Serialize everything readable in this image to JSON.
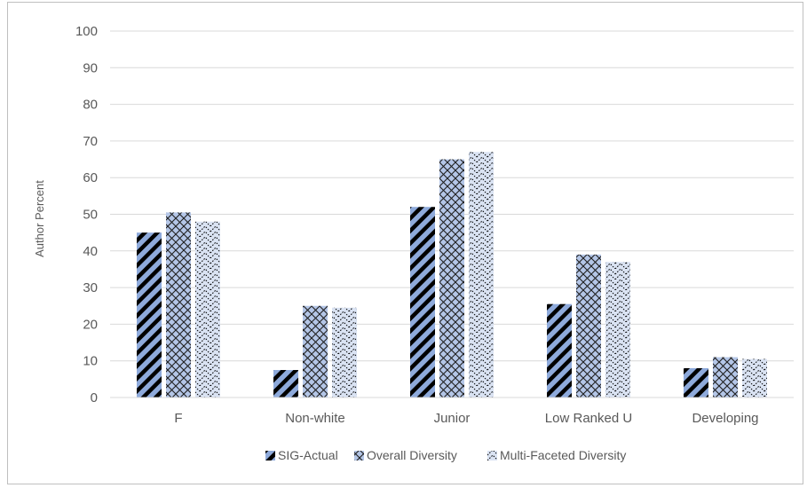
{
  "chart_data": {
    "type": "bar",
    "title": "",
    "xlabel": "",
    "ylabel": "Author Percent",
    "ylim": [
      0,
      100
    ],
    "yticks": [
      0,
      10,
      20,
      30,
      40,
      50,
      60,
      70,
      80,
      90,
      100
    ],
    "categories": [
      "F",
      "Non-white",
      "Junior",
      "Low Ranked U",
      "Developing"
    ],
    "series": [
      {
        "name": "SIG-Actual",
        "values": [
          45,
          7.5,
          52,
          25.5,
          8
        ],
        "pattern": "diagonal-stripes",
        "color": "#8eaadb"
      },
      {
        "name": "Overall Diversity",
        "values": [
          50.5,
          25,
          65,
          39,
          11
        ],
        "pattern": "crosshatch",
        "color": "#b4c6e7"
      },
      {
        "name": "Multi-Faceted Diversity",
        "values": [
          48,
          24.5,
          67,
          37,
          10.5
        ],
        "pattern": "zigzag-dashes",
        "color": "#dae3f3"
      }
    ],
    "grid": true,
    "legend_position": "bottom"
  }
}
